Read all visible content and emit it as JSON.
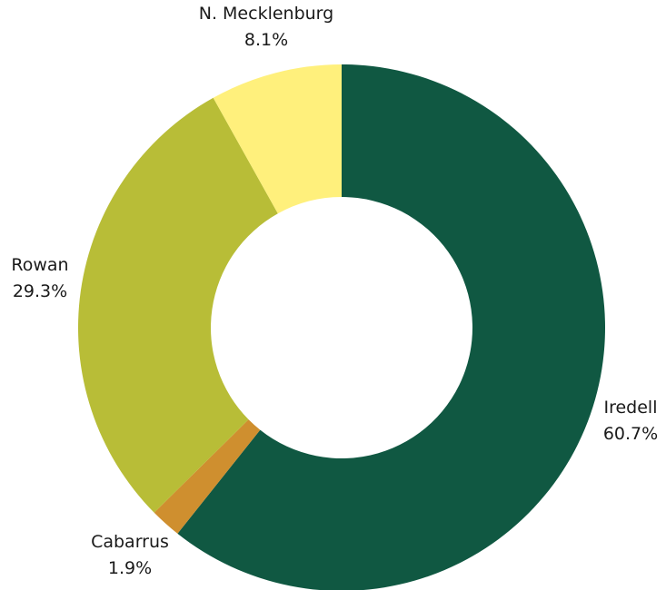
{
  "chart_data": {
    "type": "pie",
    "donut": true,
    "title": "",
    "start_angle_deg": 0,
    "direction": "clockwise",
    "slices": [
      {
        "label": "Iredell",
        "value": 60.7,
        "display": "60.7%",
        "color": "#105842"
      },
      {
        "label": "Cabarrus",
        "value": 1.9,
        "display": "1.9%",
        "color": "#cf8f2f"
      },
      {
        "label": "Rowan",
        "value": 29.3,
        "display": "29.3%",
        "color": "#b8bd37"
      },
      {
        "label": "N. Mecklenburg",
        "value": 8.1,
        "display": "8.1%",
        "color": "#fff07c"
      }
    ]
  }
}
